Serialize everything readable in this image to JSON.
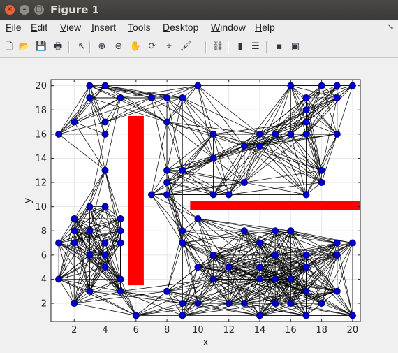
{
  "window": {
    "title": "Figure 1"
  },
  "menu": [
    {
      "pre": "",
      "u": "F",
      "post": "ile"
    },
    {
      "pre": "",
      "u": "E",
      "post": "dit"
    },
    {
      "pre": "",
      "u": "V",
      "post": "iew"
    },
    {
      "pre": "",
      "u": "I",
      "post": "nsert"
    },
    {
      "pre": "",
      "u": "T",
      "post": "ools"
    },
    {
      "pre": "",
      "u": "D",
      "post": "esktop"
    },
    {
      "pre": "",
      "u": "W",
      "post": "indow"
    },
    {
      "pre": "",
      "u": "H",
      "post": "elp"
    }
  ],
  "toolbar_icons": [
    "new-figure-icon",
    "open-file-icon",
    "save-icon",
    "print-icon",
    "pointer-icon",
    "zoom-in-icon",
    "zoom-out-icon",
    "pan-icon",
    "rotate-3d-icon",
    "data-cursor-icon",
    "brush-icon",
    "link-plot-icon",
    "colorbar-icon",
    "legend-icon",
    "hide-plot-tools-icon",
    "show-plot-tools-icon"
  ],
  "chart_data": {
    "type": "scatter",
    "title": "",
    "xlabel": "x",
    "ylabel": "y",
    "xlim": [
      0.5,
      20.5
    ],
    "ylim": [
      0.5,
      20.5
    ],
    "xticks": [
      2,
      4,
      6,
      8,
      10,
      12,
      14,
      16,
      18,
      20
    ],
    "yticks": [
      2,
      4,
      6,
      8,
      10,
      12,
      14,
      16,
      18,
      20
    ],
    "grid": true,
    "marker_color": "#0000cc",
    "edge_color": "#000000",
    "obstacle_color": "#ff0000",
    "obstacles": [
      {
        "x": [
          5.5,
          6.5
        ],
        "y": [
          3.5,
          17.5
        ]
      },
      {
        "x": [
          9.5,
          20.5
        ],
        "y": [
          9.7,
          10.5
        ]
      }
    ],
    "nodes": [
      [
        3,
        20
      ],
      [
        4,
        20
      ],
      [
        3,
        19
      ],
      [
        5,
        19
      ],
      [
        7,
        19
      ],
      [
        8,
        19
      ],
      [
        9,
        19
      ],
      [
        10,
        20
      ],
      [
        2,
        17
      ],
      [
        4,
        17
      ],
      [
        8,
        17
      ],
      [
        1,
        16
      ],
      [
        4,
        16
      ],
      [
        16,
        20
      ],
      [
        18,
        20
      ],
      [
        19,
        20
      ],
      [
        20,
        20
      ],
      [
        17,
        19
      ],
      [
        19,
        19
      ],
      [
        17,
        18
      ],
      [
        17,
        17
      ],
      [
        11,
        16
      ],
      [
        14,
        16
      ],
      [
        15,
        16
      ],
      [
        16,
        16
      ],
      [
        17,
        16
      ],
      [
        19,
        16
      ],
      [
        13,
        15
      ],
      [
        14,
        15
      ],
      [
        11,
        14
      ],
      [
        4,
        13
      ],
      [
        8,
        13
      ],
      [
        9,
        13
      ],
      [
        18,
        13
      ],
      [
        8,
        12
      ],
      [
        13,
        12
      ],
      [
        18,
        12
      ],
      [
        7,
        11
      ],
      [
        8,
        11
      ],
      [
        11,
        11
      ],
      [
        12,
        11
      ],
      [
        17,
        11
      ],
      [
        3,
        10
      ],
      [
        4,
        10
      ],
      [
        2,
        9
      ],
      [
        5,
        9
      ],
      [
        10,
        9
      ],
      [
        2,
        8
      ],
      [
        3,
        8
      ],
      [
        5,
        8
      ],
      [
        9,
        8
      ],
      [
        13,
        8
      ],
      [
        15,
        8
      ],
      [
        16,
        8
      ],
      [
        1,
        7
      ],
      [
        2,
        7
      ],
      [
        4,
        7
      ],
      [
        5,
        7
      ],
      [
        9,
        7
      ],
      [
        14,
        7
      ],
      [
        19,
        7
      ],
      [
        20,
        7
      ],
      [
        3,
        6
      ],
      [
        4,
        6
      ],
      [
        11,
        6
      ],
      [
        15,
        6
      ],
      [
        17,
        6
      ],
      [
        19,
        6
      ],
      [
        4,
        5
      ],
      [
        10,
        5
      ],
      [
        12,
        5
      ],
      [
        14,
        5
      ],
      [
        17,
        5
      ],
      [
        1,
        4
      ],
      [
        5,
        4
      ],
      [
        11,
        4
      ],
      [
        14,
        4
      ],
      [
        15,
        4
      ],
      [
        16,
        4
      ],
      [
        3,
        3
      ],
      [
        5,
        3
      ],
      [
        8,
        3
      ],
      [
        17,
        3
      ],
      [
        19,
        3
      ],
      [
        2,
        2
      ],
      [
        9,
        2
      ],
      [
        10,
        2
      ],
      [
        12,
        2
      ],
      [
        13,
        2
      ],
      [
        15,
        2
      ],
      [
        16,
        2
      ],
      [
        18,
        2
      ],
      [
        6,
        1
      ],
      [
        9,
        1
      ],
      [
        14,
        1
      ],
      [
        17,
        1
      ],
      [
        20,
        1
      ]
    ]
  }
}
